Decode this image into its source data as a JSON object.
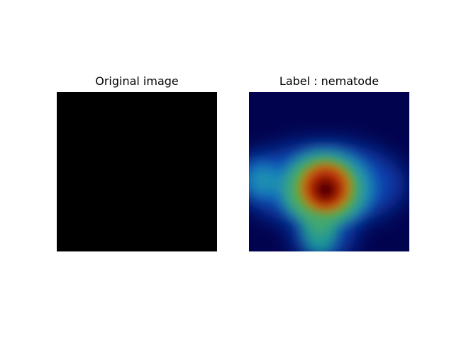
{
  "panels": [
    {
      "title": "Original image",
      "content": "black image"
    },
    {
      "title": "Label : nematode",
      "content": "class activation heatmap"
    }
  ],
  "colors": {
    "background": "#ffffff",
    "original_image_fill": "#000000",
    "heatmap_low": "#02034f",
    "heatmap_mid": "#2aa27a",
    "heatmap_high": "#b01500",
    "heatmap_peak": "#4a0000"
  },
  "colormap": "jet"
}
